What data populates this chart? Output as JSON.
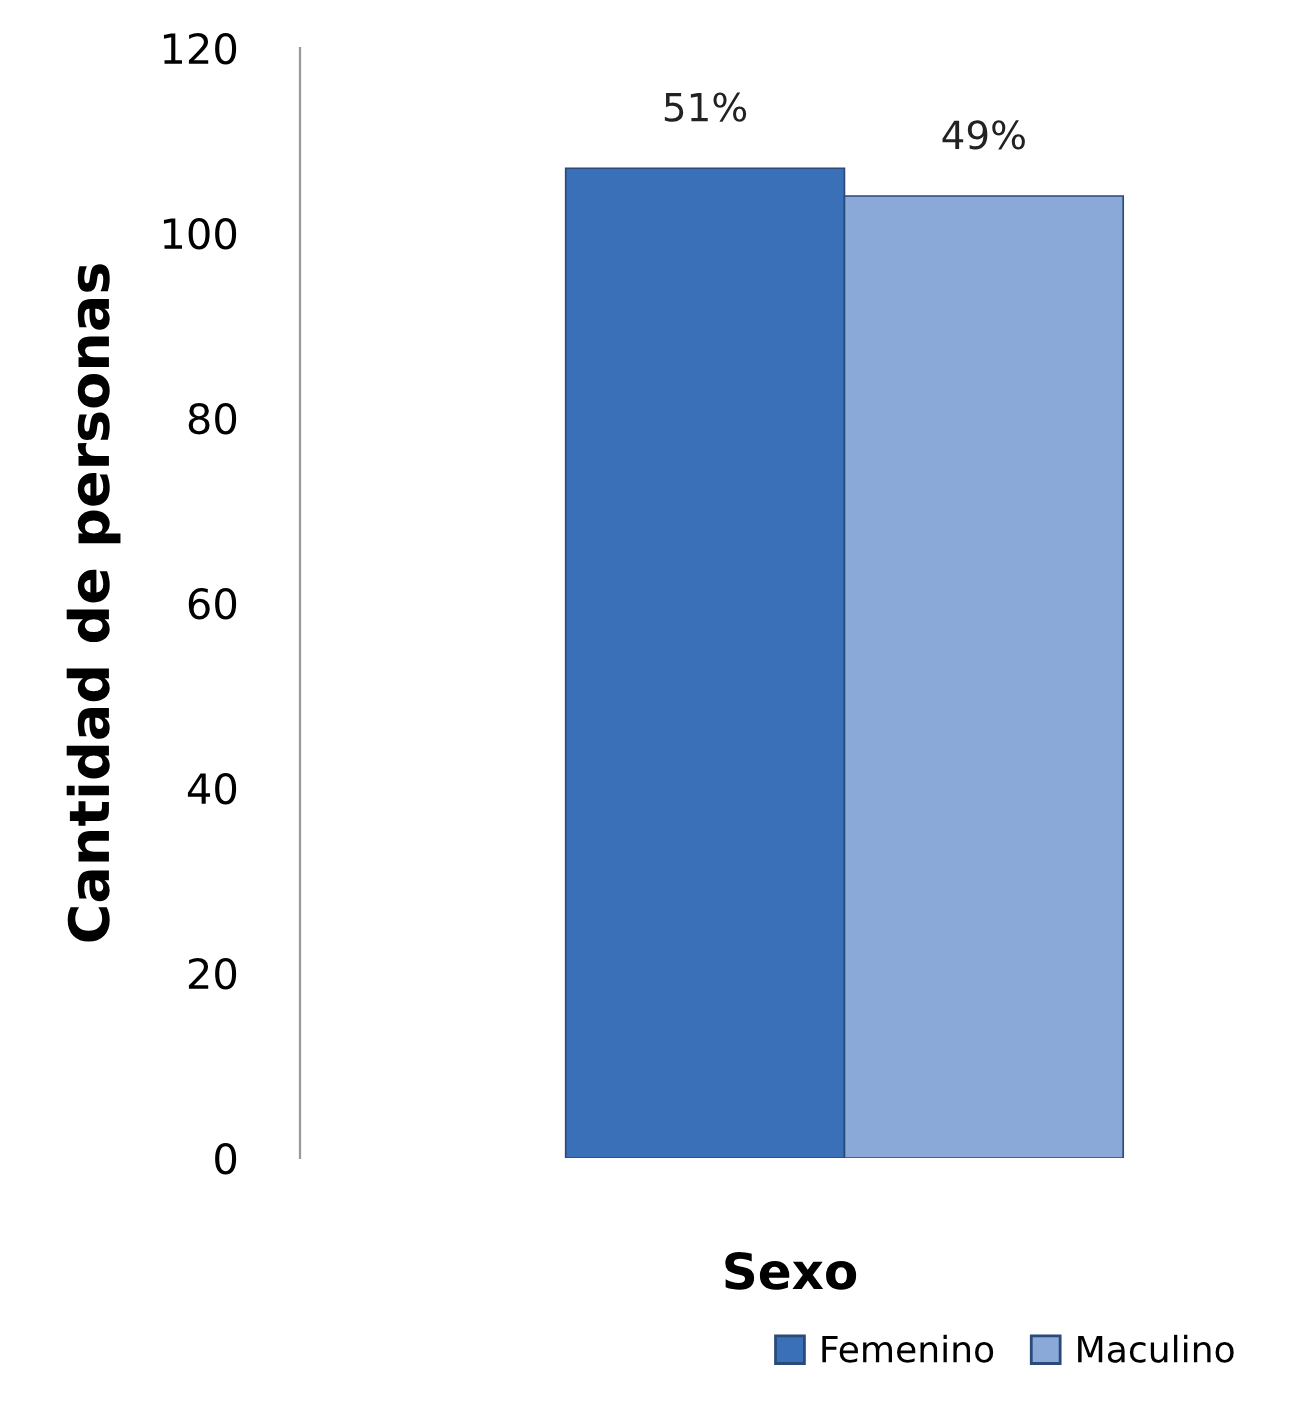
{
  "chart_data": {
    "type": "bar",
    "xlabel": "Sexo",
    "ylabel": "Cantidad de personas",
    "categories": [
      null
    ],
    "series": [
      {
        "name": "Femenino",
        "color": "#3a70b8",
        "values": [
          107
        ]
      },
      {
        "name": "Maculino",
        "color": "#8aa8d8",
        "values": [
          104
        ]
      }
    ],
    "annotations": [
      "51%",
      "49%"
    ],
    "ylim": [
      0,
      120
    ],
    "yticks": [
      0,
      20,
      40,
      60,
      80,
      100,
      120
    ],
    "grid": false,
    "legend": "bottom"
  }
}
